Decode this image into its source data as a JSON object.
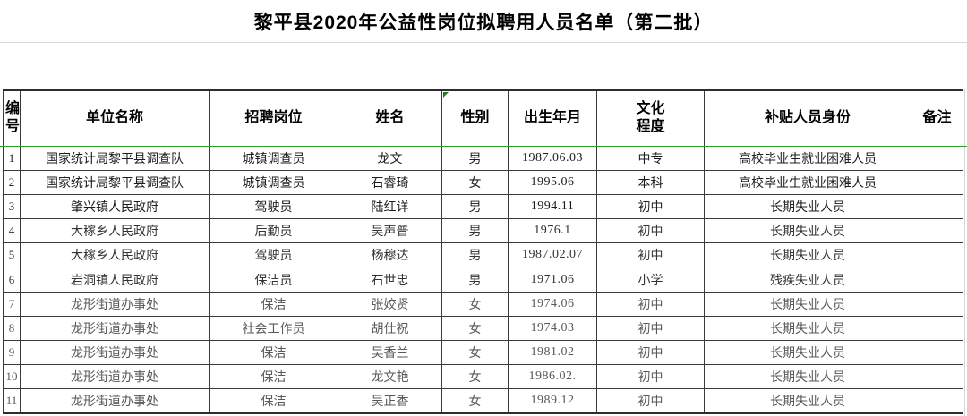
{
  "title": "黎平县2020年公益性岗位拟聘用人员名单（第二批）",
  "colors": {
    "accent_green": "#2f9e2f",
    "grid_border": "#3a3a3a",
    "title_divider": "#d9d9d9",
    "background": "#ffffff"
  },
  "icons": {
    "gender_header_flag": "green-triangle-cell-flag"
  },
  "table": {
    "columns": [
      {
        "key": "id",
        "label": "编\n号"
      },
      {
        "key": "unit",
        "label": "单位名称"
      },
      {
        "key": "position",
        "label": "招聘岗位"
      },
      {
        "key": "name",
        "label": "姓名"
      },
      {
        "key": "gender",
        "label": "性别"
      },
      {
        "key": "birth",
        "label": "出生年月"
      },
      {
        "key": "education",
        "label": "文化\n程度"
      },
      {
        "key": "identity",
        "label": "补贴人员身份"
      },
      {
        "key": "remark",
        "label": "备注"
      }
    ],
    "rows": [
      {
        "id": "1",
        "unit": "国家统计局黎平县调查队",
        "position": "城镇调查员",
        "name": "龙文",
        "gender": "男",
        "birth": "1987.06.03",
        "education": "中专",
        "identity": "高校毕业生就业困难人员",
        "remark": ""
      },
      {
        "id": "2",
        "unit": "国家统计局黎平县调查队",
        "position": "城镇调查员",
        "name": "石睿琦",
        "gender": "女",
        "birth": "1995.06",
        "education": "本科",
        "identity": "高校毕业生就业困难人员",
        "remark": ""
      },
      {
        "id": "3",
        "unit": "肇兴镇人民政府",
        "position": "驾驶员",
        "name": "陆红详",
        "gender": "男",
        "birth": "1994.11",
        "education": "初中",
        "identity": "长期失业人员",
        "remark": ""
      },
      {
        "id": "4",
        "unit": "大稼乡人民政府",
        "position": "后勤员",
        "name": "吴声普",
        "gender": "男",
        "birth": "1976.1",
        "education": "初中",
        "identity": "长期失业人员",
        "remark": ""
      },
      {
        "id": "5",
        "unit": "大稼乡人民政府",
        "position": "驾驶员",
        "name": "杨穆达",
        "gender": "男",
        "birth": "1987.02.07",
        "education": "初中",
        "identity": "长期失业人员",
        "remark": ""
      },
      {
        "id": "6",
        "unit": "岩洞镇人民政府",
        "position": "保洁员",
        "name": "石世忠",
        "gender": "男",
        "birth": "1971.06",
        "education": "小学",
        "identity": "残疾失业人员",
        "remark": ""
      },
      {
        "id": "7",
        "unit": "龙形街道办事处",
        "position": "保洁",
        "name": "张姣贤",
        "gender": "女",
        "birth": "1974.06",
        "education": "初中",
        "identity": "长期失业人员",
        "remark": ""
      },
      {
        "id": "8",
        "unit": "龙形街道办事处",
        "position": "社会工作员",
        "name": "胡仕祝",
        "gender": "女",
        "birth": "1974.03",
        "education": "初中",
        "identity": "长期失业人员",
        "remark": ""
      },
      {
        "id": "9",
        "unit": "龙形街道办事处",
        "position": "保洁",
        "name": "吴香兰",
        "gender": "女",
        "birth": "1981.02",
        "education": "初中",
        "identity": "长期失业人员",
        "remark": ""
      },
      {
        "id": "10",
        "unit": "龙形街道办事处",
        "position": "保洁",
        "name": "龙文艳",
        "gender": "女",
        "birth": "1986.02.",
        "education": "初中",
        "identity": "长期失业人员",
        "remark": ""
      },
      {
        "id": "11",
        "unit": "龙形街道办事处",
        "position": "保洁",
        "name": "吴正香",
        "gender": "女",
        "birth": "1989.12",
        "education": "初中",
        "identity": "长期失业人员",
        "remark": ""
      }
    ]
  }
}
